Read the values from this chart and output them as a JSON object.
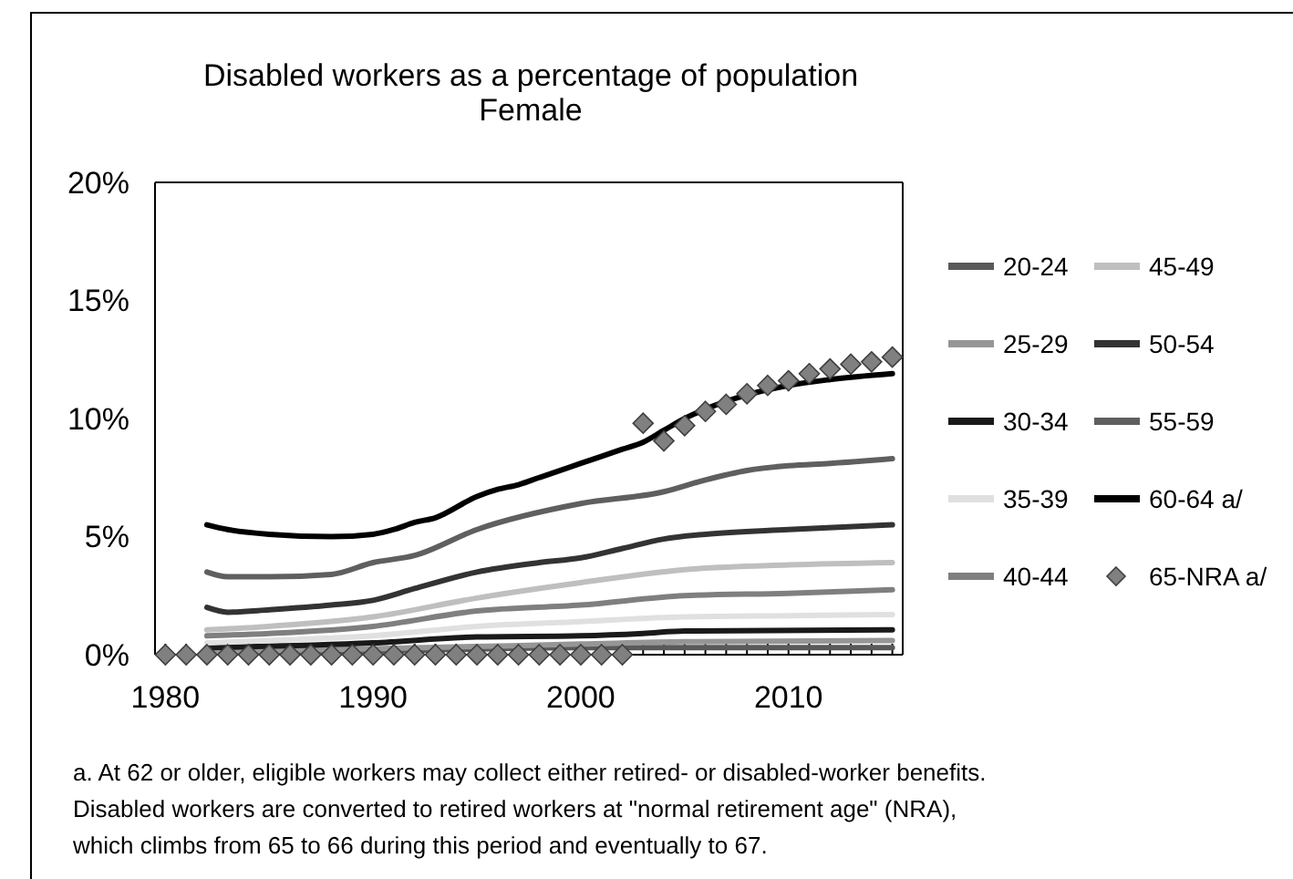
{
  "chart_data": {
    "type": "line",
    "title": "Disabled workers as a percentage of population",
    "subtitle": "Female",
    "xlim": [
      1979.5,
      2015.5
    ],
    "xticks": [
      1980,
      {
        "value": 1981,
        "label": null
      },
      {
        "value": 1982,
        "label": null
      },
      {
        "value": 1983,
        "label": null
      },
      {
        "value": 1984,
        "label": null
      },
      {
        "value": 1985,
        "label": null
      },
      {
        "value": 1986,
        "label": null
      },
      {
        "value": 1987,
        "label": null
      },
      {
        "value": 1988,
        "label": null
      },
      {
        "value": 1989,
        "label": null
      },
      1990,
      {
        "value": 1991,
        "label": null
      },
      {
        "value": 1992,
        "label": null
      },
      {
        "value": 1993,
        "label": null
      },
      {
        "value": 1994,
        "label": null
      },
      {
        "value": 1995,
        "label": null
      },
      {
        "value": 1996,
        "label": null
      },
      {
        "value": 1997,
        "label": null
      },
      {
        "value": 1998,
        "label": null
      },
      {
        "value": 1999,
        "label": null
      },
      2000,
      {
        "value": 2001,
        "label": null
      },
      {
        "value": 2002,
        "label": null
      },
      {
        "value": 2003,
        "label": null
      },
      {
        "value": 2004,
        "label": null
      },
      {
        "value": 2005,
        "label": null
      },
      {
        "value": 2006,
        "label": null
      },
      {
        "value": 2007,
        "label": null
      },
      {
        "value": 2008,
        "label": null
      },
      {
        "value": 2009,
        "label": null
      },
      2010,
      {
        "value": 2011,
        "label": null
      },
      {
        "value": 2012,
        "label": null
      },
      {
        "value": 2013,
        "label": null
      },
      {
        "value": 2014,
        "label": null
      },
      {
        "value": 2015,
        "label": null
      }
    ],
    "ylim": [
      0,
      20
    ],
    "yticks": [
      {
        "value": 0,
        "label": "0%"
      },
      {
        "value": 5,
        "label": "5%"
      },
      {
        "value": 10,
        "label": "10%"
      },
      {
        "value": 15,
        "label": "15%"
      },
      {
        "value": 20,
        "label": "20%"
      }
    ],
    "legend": "right",
    "series": [
      {
        "name": "20-24",
        "color": "#595959",
        "x": [
          1982,
          1990,
          2000,
          2005,
          2015
        ],
        "values": [
          0.1,
          0.15,
          0.3,
          0.3,
          0.3
        ]
      },
      {
        "name": "25-29",
        "color": "#969696",
        "x": [
          1982,
          1990,
          2000,
          2005,
          2015
        ],
        "values": [
          0.15,
          0.25,
          0.45,
          0.55,
          0.6
        ]
      },
      {
        "name": "30-34",
        "color": "#1a1a1a",
        "x": [
          1982,
          1990,
          1995,
          2000,
          2003,
          2005,
          2015
        ],
        "values": [
          0.3,
          0.5,
          0.75,
          0.8,
          0.9,
          1.0,
          1.05
        ]
      },
      {
        "name": "35-39",
        "color": "#e0e0e0",
        "x": [
          1982,
          1985,
          1990,
          1995,
          2000,
          2005,
          2010,
          2015
        ],
        "values": [
          0.5,
          0.6,
          0.8,
          1.2,
          1.4,
          1.6,
          1.65,
          1.7
        ]
      },
      {
        "name": "40-44",
        "color": "#7f7f7f",
        "x": [
          1982,
          1985,
          1990,
          1995,
          2000,
          2005,
          2010,
          2015
        ],
        "values": [
          0.8,
          0.9,
          1.2,
          1.85,
          2.1,
          2.5,
          2.6,
          2.75
        ]
      },
      {
        "name": "45-49",
        "color": "#bfbfbf",
        "x": [
          1982,
          1985,
          1990,
          1995,
          2000,
          2005,
          2010,
          2015
        ],
        "values": [
          1.05,
          1.2,
          1.6,
          2.4,
          3.05,
          3.6,
          3.8,
          3.9
        ]
      },
      {
        "name": "50-54",
        "color": "#333333",
        "x": [
          1982,
          1983,
          1985,
          1988,
          1990,
          1992,
          1995,
          1998,
          2000,
          2002,
          2004,
          2006,
          2010,
          2015
        ],
        "values": [
          2.0,
          1.8,
          1.9,
          2.1,
          2.3,
          2.8,
          3.5,
          3.9,
          4.1,
          4.5,
          4.9,
          5.1,
          5.3,
          5.5
        ]
      },
      {
        "name": "55-59",
        "color": "#5f5f5f",
        "x": [
          1982,
          1983,
          1985,
          1988,
          1990,
          1992,
          1995,
          2000,
          2004,
          2006,
          2008,
          2010,
          2012,
          2015
        ],
        "values": [
          3.5,
          3.3,
          3.3,
          3.4,
          3.9,
          4.2,
          5.3,
          6.4,
          6.9,
          7.4,
          7.8,
          8.0,
          8.1,
          8.3
        ]
      },
      {
        "name": "60-64 a/",
        "color": "#000000",
        "x": [
          1982,
          1983,
          1985,
          1988,
          1990,
          1991,
          1992,
          1993,
          1995,
          1996,
          1997,
          1998,
          2000,
          2002,
          2003,
          2004,
          2005,
          2006,
          2008,
          2010,
          2012,
          2015
        ],
        "values": [
          5.5,
          5.3,
          5.1,
          5.0,
          5.1,
          5.3,
          5.6,
          5.8,
          6.7,
          7.0,
          7.2,
          7.5,
          8.1,
          8.7,
          9.0,
          9.5,
          10.0,
          10.4,
          11.0,
          11.4,
          11.65,
          11.9
        ]
      },
      {
        "name": "65-NRA a/",
        "type": "scatter",
        "marker": "diamond",
        "color": "#808080",
        "x": [
          1980,
          1981,
          1982,
          1983,
          1984,
          1985,
          1986,
          1987,
          1988,
          1989,
          1990,
          1991,
          1992,
          1993,
          1994,
          1995,
          1996,
          1997,
          1998,
          1999,
          2000,
          2001,
          2002,
          2003,
          2004,
          2005,
          2006,
          2007,
          2008,
          2009,
          2010,
          2011,
          2012,
          2013,
          2014,
          2015
        ],
        "values": [
          0,
          0,
          0,
          0,
          0,
          0,
          0,
          0,
          0,
          0,
          0,
          0,
          0,
          0,
          0,
          0,
          0,
          0,
          0,
          0,
          0,
          0,
          0,
          9.8,
          9.05,
          9.7,
          10.3,
          10.6,
          11.05,
          11.4,
          11.6,
          11.9,
          12.1,
          12.3,
          12.4,
          12.6
        ]
      }
    ],
    "annotations": [
      "a.  At 62 or older, eligible workers may collect either retired- or disabled-worker benefits.",
      "Disabled workers are converted to retired workers at \"normal retirement age\" (NRA),",
      "which climbs from 65 to 66 during this period and eventually to 67."
    ]
  }
}
